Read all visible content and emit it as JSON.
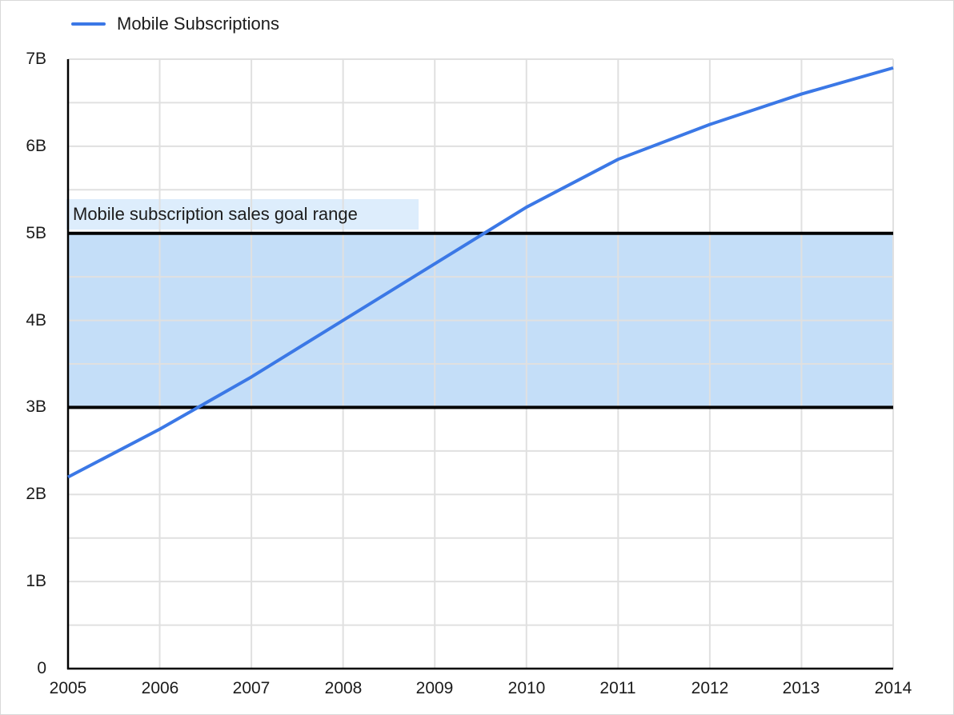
{
  "legend": {
    "series_label": "Mobile Subscriptions"
  },
  "annotation": {
    "text": "Mobile subscription sales goal range"
  },
  "y_axis": {
    "tick_labels": [
      "0",
      "1B",
      "2B",
      "3B",
      "4B",
      "5B",
      "6B",
      "7B"
    ]
  },
  "x_axis": {
    "tick_labels": [
      "2005",
      "2006",
      "2007",
      "2008",
      "2009",
      "2010",
      "2011",
      "2012",
      "2013",
      "2014"
    ]
  },
  "colors": {
    "series_line": "#3b78e6",
    "band_fill": "#c4def8",
    "annotation_bg": "#ddedfc",
    "goal_line": "#000000",
    "axis_line": "#000000",
    "gridline": "#e0e0e0",
    "text": "#1c1c1c",
    "background": "#ffffff",
    "border": "#d9d9d9"
  },
  "chart_data": {
    "type": "line",
    "x": [
      2005,
      2006,
      2007,
      2008,
      2009,
      2010,
      2011,
      2012,
      2013,
      2014
    ],
    "series": [
      {
        "name": "Mobile Subscriptions",
        "values": [
          2.2,
          2.75,
          3.35,
          4.0,
          4.65,
          5.3,
          5.85,
          6.25,
          6.6,
          6.9
        ],
        "color": "#3b78e6"
      }
    ],
    "ylim": [
      0,
      7
    ],
    "y_gridline_interval": 0.5,
    "y_major_tick_interval": 1,
    "y_tick_suffix": "B",
    "grid": true,
    "legend_position": "top-left",
    "goal_range": {
      "lower": 3,
      "upper": 5,
      "label": "Mobile subscription sales goal range"
    }
  }
}
